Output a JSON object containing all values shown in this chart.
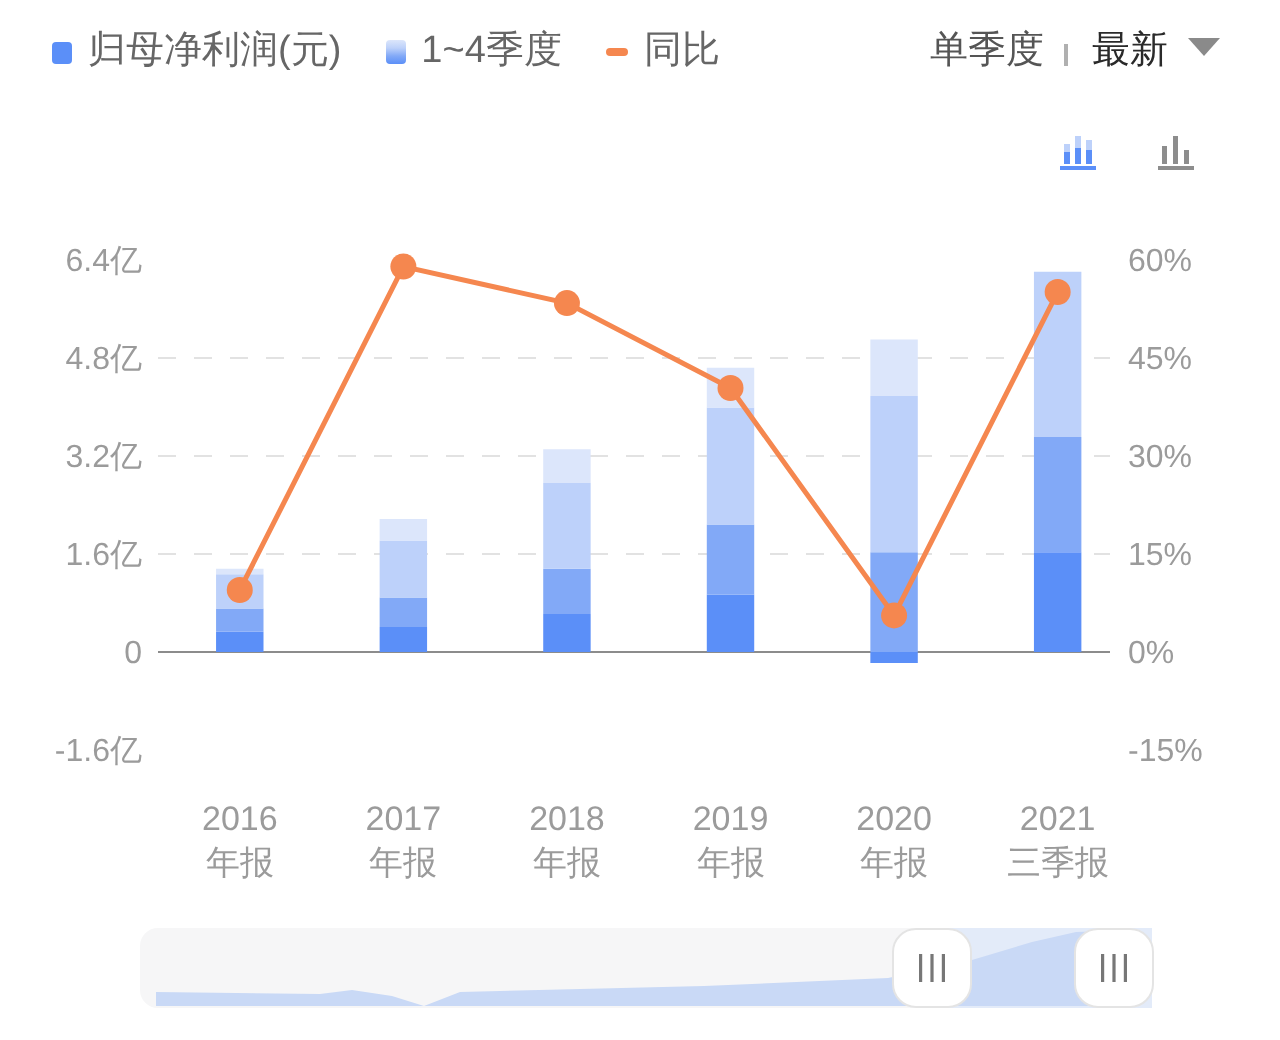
{
  "chart_data": {
    "type": "bar",
    "stacked": true,
    "categories": [
      "2016\n年报",
      "2017\n年报",
      "2018\n年报",
      "2019\n年报",
      "2020\n年报",
      "2021\n三季报"
    ],
    "series": [
      {
        "name": "归母净利润(元)",
        "color": "#5b8ff8",
        "values": [
          0.33,
          0.41,
          0.62,
          0.94,
          -0.18,
          1.63
        ]
      },
      {
        "color": "#82a9f7",
        "values": [
          0.38,
          0.48,
          0.74,
          1.14,
          1.63,
          1.88
        ]
      },
      {
        "color": "#bdd1fa",
        "values": [
          0.56,
          0.93,
          1.4,
          1.91,
          2.55,
          2.7
        ]
      },
      {
        "color": "#dce6fb",
        "values": [
          0.09,
          0.35,
          0.55,
          0.65,
          0.92,
          null
        ]
      },
      {
        "type": "line",
        "axis": "y2",
        "name": "同比",
        "color": "#f5874f",
        "values": [
          9.5,
          59.0,
          53.4,
          40.4,
          5.6,
          55.1
        ]
      }
    ],
    "ylim": [
      -1.6,
      6.4
    ],
    "yticks": [
      {
        "value": -1.6,
        "label": "-1.6亿"
      },
      0,
      {
        "value": 1.6,
        "label": "1.6亿"
      },
      {
        "value": 3.2,
        "label": "3.2亿"
      },
      {
        "value": 4.8,
        "label": "4.8亿"
      },
      {
        "value": 6.4,
        "label": "6.4亿"
      }
    ],
    "y2lim": [
      -15,
      60
    ],
    "y2ticks": [
      {
        "value": -15,
        "label": "-15%"
      },
      {
        "value": 0,
        "label": "0%"
      },
      {
        "value": 15,
        "label": "15%"
      },
      {
        "value": 30,
        "label": "30%"
      },
      {
        "value": 45,
        "label": "45%"
      },
      {
        "value": 60,
        "label": "60%"
      }
    ],
    "annotations": [
      "1~4季度",
      "单季度",
      "最新"
    ],
    "grid": "y",
    "legend": "top left",
    "marker": "circle"
  }
}
